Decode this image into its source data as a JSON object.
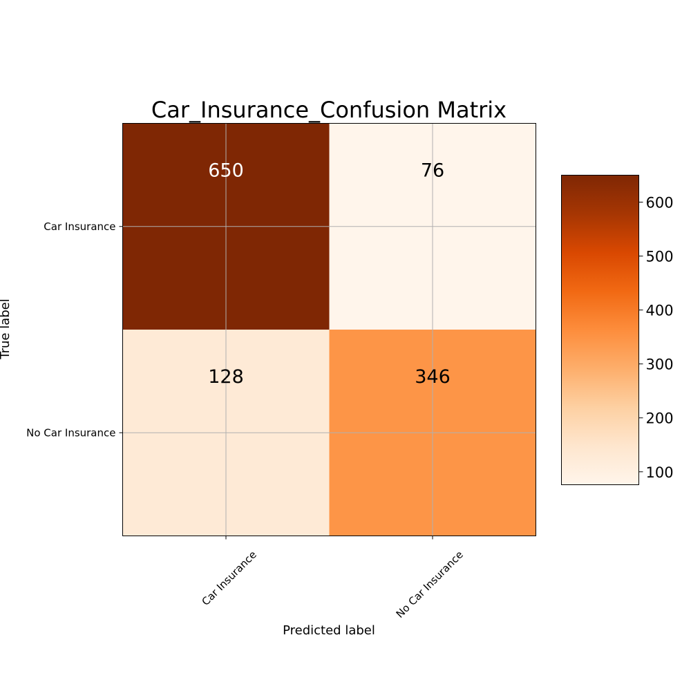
{
  "chart_data": {
    "type": "heatmap",
    "title": "Car_Insurance_Confusion Matrix",
    "xlabel": "Predicted label",
    "ylabel": "True label",
    "x_categories": [
      "Car Insurance",
      "No Car Insurance"
    ],
    "y_categories": [
      "Car Insurance",
      "No Car Insurance"
    ],
    "values": [
      [
        650,
        76
      ],
      [
        128,
        346
      ]
    ],
    "colormap": "Oranges",
    "colorbar": {
      "min": 76,
      "max": 650,
      "ticks": [
        100,
        200,
        300,
        400,
        500,
        600
      ]
    },
    "grid": true
  }
}
